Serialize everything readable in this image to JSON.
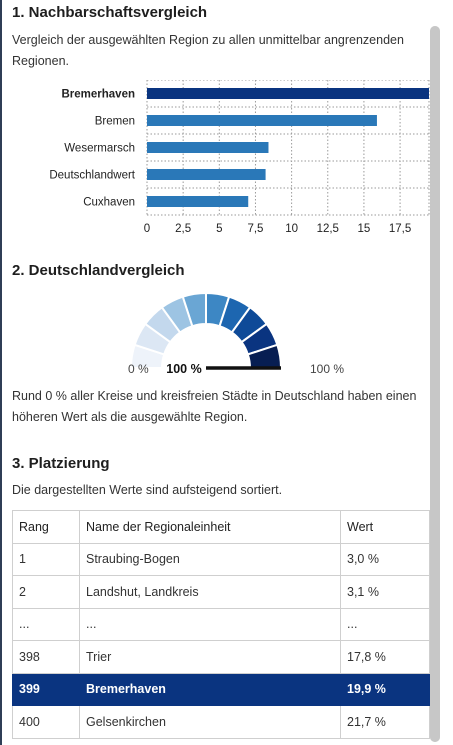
{
  "section1": {
    "title": "1. Nachbarschaftsvergleich",
    "description": "Vergleich der ausgewählten Region zu allen unmittelbar angrenzenden Regionen."
  },
  "chart_data": {
    "type": "bar",
    "orientation": "horizontal",
    "categories": [
      "Bremerhaven",
      "Bremen",
      "Wesermarsch",
      "Deutschlandwert",
      "Cuxhaven"
    ],
    "values": [
      19.9,
      15.9,
      8.4,
      8.2,
      7.0
    ],
    "highlighted_category": "Bremerhaven",
    "xlim": [
      0,
      19.5
    ],
    "xticks": [
      0,
      2.5,
      5,
      7.5,
      10,
      12.5,
      15,
      17.5
    ],
    "xtick_labels": [
      "0",
      "2,5",
      "5",
      "7,5",
      "10",
      "12,5",
      "15",
      "17,5"
    ],
    "grid": true,
    "colors": {
      "highlight": "#0a3480",
      "default": "#2a78b8"
    }
  },
  "section2": {
    "title": "2. Deutschlandvergleich",
    "gauge": {
      "value_percent": 100,
      "value_label": "100 %",
      "min_label": "0 %",
      "max_label": "100 %",
      "segment_colors": [
        "#eef3fa",
        "#dce7f4",
        "#c3d8ed",
        "#9dc4e3",
        "#6aa6d4",
        "#3d87c4",
        "#1d66b0",
        "#0e4a98",
        "#0a3480",
        "#071e52"
      ]
    },
    "description": "Rund 0 % aller Kreise und kreisfreien Städte in Deutschland haben einen höheren Wert als die ausgewählte Region."
  },
  "section3": {
    "title": "3. Platzierung",
    "description": "Die dargestellten Werte sind aufsteigend sortiert.",
    "columns": [
      "Rang",
      "Name der Regionaleinheit",
      "Wert"
    ],
    "rows": [
      {
        "rang": "1",
        "name": "Straubing-Bogen",
        "wert": "3,0 %",
        "highlight": false
      },
      {
        "rang": "2",
        "name": "Landshut, Landkreis",
        "wert": "3,1 %",
        "highlight": false
      },
      {
        "rang": "...",
        "name": "...",
        "wert": "...",
        "highlight": false
      },
      {
        "rang": "398",
        "name": "Trier",
        "wert": "17,8 %",
        "highlight": false
      },
      {
        "rang": "399",
        "name": "Bremerhaven",
        "wert": "19,9 %",
        "highlight": true
      },
      {
        "rang": "400",
        "name": "Gelsenkirchen",
        "wert": "21,7 %",
        "highlight": false
      }
    ],
    "highlight_color": "#0a3480"
  }
}
